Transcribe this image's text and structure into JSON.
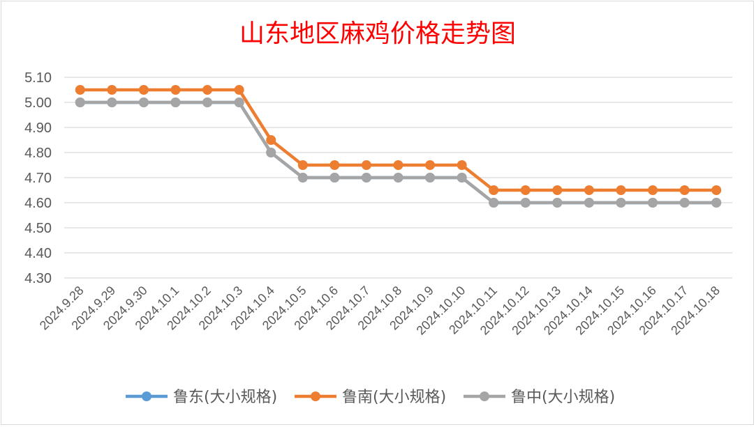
{
  "chart_data": {
    "type": "line",
    "title": "山东地区麻鸡价格走势图",
    "xlabel": "",
    "ylabel": "",
    "categories": [
      "2024.9.28",
      "2024.9.29",
      "2024.9.30",
      "2024.10.1",
      "2024.10.2",
      "2024.10.3",
      "2024.10.4",
      "2024.10.5",
      "2024.10.6",
      "2024.10.7",
      "2024.10.8",
      "2024.10.9",
      "2024.10.10",
      "2024.10.11",
      "2024.10.12",
      "2024.10.13",
      "2024.10.14",
      "2024.10.15",
      "2024.10.16",
      "2024.10.17",
      "2024.10.18"
    ],
    "yticks": [
      "4.30",
      "4.40",
      "4.50",
      "4.60",
      "4.70",
      "4.80",
      "4.90",
      "5.00",
      "5.10"
    ],
    "ylim": [
      4.3,
      5.1
    ],
    "grid": true,
    "legend_position": "bottom",
    "series": [
      {
        "name": "鲁东(大小规格)",
        "color": "#5b9bd5",
        "values": [
          5.0,
          5.0,
          5.0,
          5.0,
          5.0,
          5.0,
          4.8,
          4.7,
          4.7,
          4.7,
          4.7,
          4.7,
          4.7,
          4.6,
          4.6,
          4.6,
          4.6,
          4.6,
          4.6,
          4.6,
          4.6
        ]
      },
      {
        "name": "鲁南(大小规格)",
        "color": "#ed7d31",
        "values": [
          5.05,
          5.05,
          5.05,
          5.05,
          5.05,
          5.05,
          4.85,
          4.75,
          4.75,
          4.75,
          4.75,
          4.75,
          4.75,
          4.65,
          4.65,
          4.65,
          4.65,
          4.65,
          4.65,
          4.65,
          4.65
        ]
      },
      {
        "name": "鲁中(大小规格)",
        "color": "#a5a5a5",
        "values": [
          5.0,
          5.0,
          5.0,
          5.0,
          5.0,
          5.0,
          4.8,
          4.7,
          4.7,
          4.7,
          4.7,
          4.7,
          4.7,
          4.6,
          4.6,
          4.6,
          4.6,
          4.6,
          4.6,
          4.6,
          4.6
        ]
      }
    ]
  }
}
